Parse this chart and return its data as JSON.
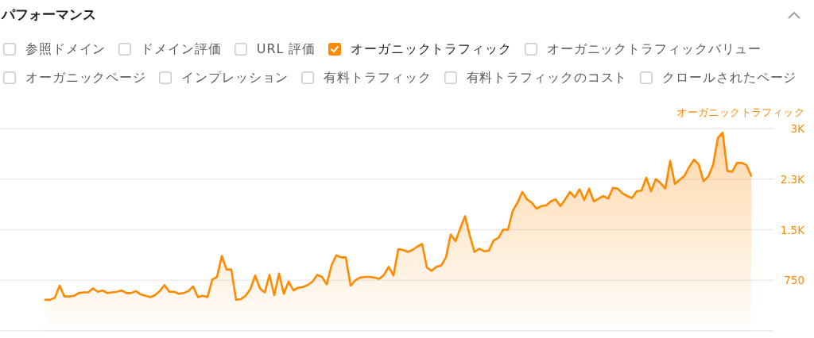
{
  "chart_data": {
    "type": "area",
    "title": "パフォーマンス",
    "ylabel": "オーガニックトラフィック",
    "annotations": [
      "参照ドメイン",
      "ドメイン評価",
      "URL 評価",
      "オーガニックトラフィックバリュー",
      "オーガニックページ",
      "インプレッション",
      "有料トラフィック",
      "有料トラフィックのコスト",
      "クロールされたページ"
    ],
    "categories": [
      null,
      null,
      null,
      null,
      null,
      null,
      null,
      null,
      null,
      null,
      null,
      null,
      null,
      null,
      null,
      null,
      null,
      null,
      null,
      null,
      null,
      null,
      null,
      null,
      null,
      null,
      null,
      null,
      null,
      null,
      null,
      null,
      null,
      null,
      null,
      null,
      null,
      null,
      null,
      null,
      null,
      null,
      null,
      null,
      null,
      null,
      null,
      null,
      null,
      null,
      null,
      null,
      null,
      null,
      null,
      null,
      null,
      null,
      null,
      null,
      null,
      null,
      null,
      null,
      null,
      null,
      null,
      null,
      null,
      null,
      null,
      null,
      null,
      null,
      null,
      null,
      null,
      null,
      null,
      null,
      null,
      null,
      null,
      null,
      null,
      null,
      null,
      null,
      null,
      null,
      null,
      null,
      null,
      null,
      null,
      null,
      null,
      null,
      null,
      null,
      null,
      null,
      null,
      null,
      null,
      null,
      null,
      null,
      null,
      null,
      null,
      null,
      null,
      null,
      null,
      null,
      null,
      null,
      null,
      null,
      null,
      null,
      null,
      null,
      null,
      null,
      null,
      null,
      null,
      null,
      null,
      null,
      null,
      null,
      null,
      null,
      null,
      null,
      null,
      null,
      null,
      null,
      null,
      null,
      null,
      null,
      null,
      null,
      null
    ],
    "series": [
      {
        "name": "オーガニックトラフィック",
        "color": "#ff8a00",
        "values": [
          460,
          460,
          490,
          670,
          510,
          510,
          520,
          560,
          570,
          570,
          630,
          580,
          600,
          560,
          570,
          580,
          600,
          560,
          560,
          590,
          540,
          520,
          500,
          530,
          590,
          680,
          580,
          580,
          550,
          560,
          590,
          660,
          500,
          520,
          500,
          760,
          800,
          1110,
          910,
          910,
          460,
          470,
          520,
          620,
          820,
          630,
          570,
          830,
          530,
          850,
          550,
          730,
          600,
          640,
          650,
          680,
          730,
          830,
          800,
          690,
          970,
          1120,
          1090,
          1090,
          670,
          750,
          790,
          800,
          800,
          790,
          770,
          830,
          950,
          820,
          1210,
          1200,
          1170,
          1200,
          1250,
          1290,
          940,
          890,
          950,
          970,
          1090,
          1430,
          1330,
          1520,
          1700,
          1410,
          1170,
          1220,
          1180,
          1190,
          1340,
          1380,
          1500,
          1500,
          1780,
          1900,
          2060,
          1950,
          1900,
          1810,
          1850,
          1860,
          1920,
          1950,
          1850,
          1950,
          2060,
          1980,
          2100,
          1940,
          2110,
          1920,
          1960,
          2000,
          1960,
          2120,
          2110,
          2040,
          2000,
          1970,
          2070,
          2080,
          2270,
          2070,
          2250,
          2190,
          2110,
          2520,
          2180,
          2240,
          2300,
          2430,
          2540,
          2470,
          2220,
          2290,
          2460,
          2860,
          2940,
          2370,
          2360,
          2490,
          2490,
          2460,
          2300
        ]
      }
    ],
    "ylim": [
      0,
      3000
    ],
    "yticks": [
      {
        "value": 0,
        "label": null
      },
      750,
      {
        "value": 1500,
        "label": "1.5K"
      },
      {
        "value": 2250,
        "label": "2.3K"
      },
      {
        "value": 3000,
        "label": "3K"
      }
    ],
    "grid": "y",
    "legend": "top"
  }
}
